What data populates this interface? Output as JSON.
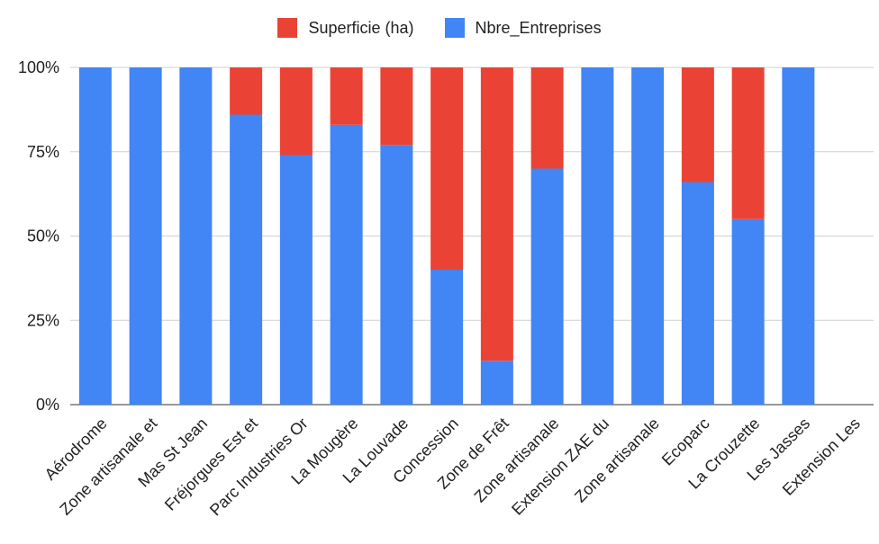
{
  "chart_data": {
    "type": "bar",
    "stacked": "percent",
    "title": "",
    "xlabel": "",
    "ylabel": "",
    "ylim": [
      0,
      100
    ],
    "yticks": [
      "0%",
      "25%",
      "50%",
      "75%",
      "100%"
    ],
    "legend_position": "top-center",
    "categories": [
      "Aérodrome",
      "Zone artisanale et",
      "Mas St Jean",
      "Fréjorgues Est et",
      "Parc Industries Or",
      "La Mougère",
      "La Louvade",
      "Concession",
      "Zone de Frêt",
      "Zone artisanale",
      "Extension ZAE du",
      "Zone artisanale",
      "Ecoparc",
      "La Crouzette",
      "Les Jasses",
      "Extension Les"
    ],
    "series": [
      {
        "name": "Nbre_Entreprises",
        "color": "#4285F4",
        "values": [
          100,
          100,
          100,
          86,
          74,
          83,
          77,
          40,
          13,
          70,
          100,
          100,
          66,
          55,
          100,
          0
        ]
      },
      {
        "name": "Superficie (ha)",
        "color": "#EA4335",
        "values": [
          0,
          0,
          0,
          14,
          26,
          17,
          23,
          60,
          87,
          30,
          0,
          0,
          34,
          45,
          0,
          0
        ]
      }
    ],
    "legend": [
      "Superficie (ha)",
      "Nbre_Entreprises"
    ]
  }
}
